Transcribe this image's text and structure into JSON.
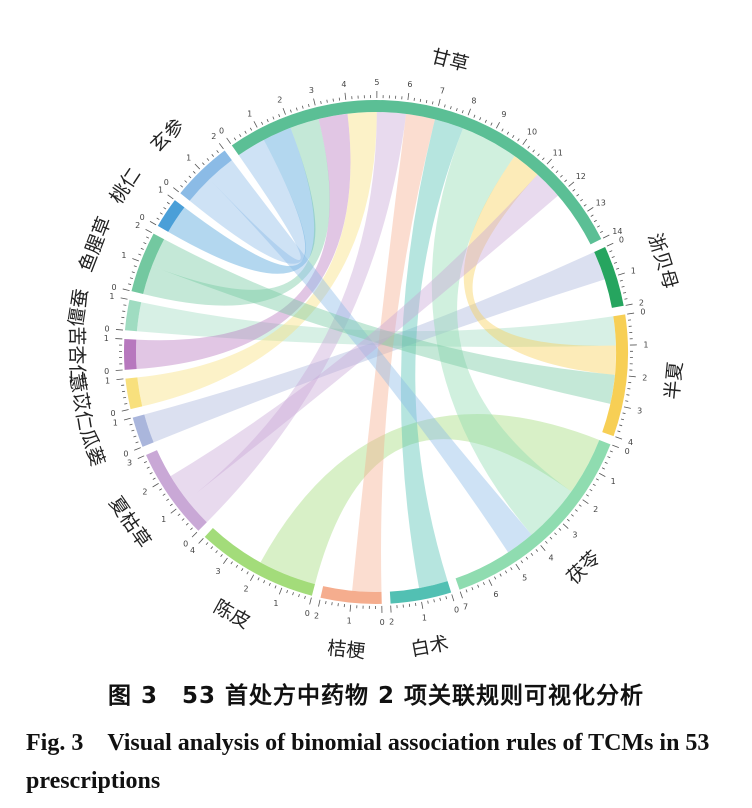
{
  "chart_data": {
    "type": "chord",
    "nodes": [
      {
        "name": "甘草",
        "color": "#5bbf95",
        "value": 14
      },
      {
        "name": "浙贝母",
        "color": "#26a55f",
        "value": 2
      },
      {
        "name": "半夏",
        "color": "#f7cf55",
        "value": 4
      },
      {
        "name": "茯苓",
        "color": "#8fdcb0",
        "value": 7
      },
      {
        "name": "白术",
        "color": "#52c0b3",
        "value": 2
      },
      {
        "name": "桔梗",
        "color": "#f5ad8e",
        "value": 2
      },
      {
        "name": "陈皮",
        "color": "#a3dc7a",
        "value": 4
      },
      {
        "name": "夏枯草",
        "color": "#c9a8d6",
        "value": 3
      },
      {
        "name": "瓜蒌",
        "color": "#aab6dc",
        "value": 1
      },
      {
        "name": "薏苡仁",
        "color": "#f8e07d",
        "value": 1
      },
      {
        "name": "苦杏仁",
        "color": "#b778be",
        "value": 1
      },
      {
        "name": "僵蚕",
        "color": "#9fdcc1",
        "value": 1
      },
      {
        "name": "鱼腥草",
        "color": "#73c8a0",
        "value": 2
      },
      {
        "name": "桃仁",
        "color": "#4a9fd8",
        "value": 1
      },
      {
        "name": "玄参",
        "color": "#8bbbe6",
        "value": 2
      }
    ],
    "links": [
      {
        "source": "玄参",
        "target": "甘草",
        "value": 1
      },
      {
        "source": "桃仁",
        "target": "甘草",
        "value": 1
      },
      {
        "source": "鱼腥草",
        "target": "甘草",
        "value": 1
      },
      {
        "source": "僵蚕",
        "target": "半夏",
        "value": 1
      },
      {
        "source": "苦杏仁",
        "target": "甘草",
        "value": 1
      },
      {
        "source": "薏苡仁",
        "target": "甘草",
        "value": 1
      },
      {
        "source": "瓜蒌",
        "target": "浙贝母",
        "value": 1
      },
      {
        "source": "夏枯草",
        "target": "甘草",
        "value": 1
      },
      {
        "source": "陈皮",
        "target": "茯苓",
        "value": 2
      },
      {
        "source": "桔梗",
        "target": "甘草",
        "value": 1
      },
      {
        "source": "白术",
        "target": "甘草",
        "value": 1
      },
      {
        "source": "茯苓",
        "target": "甘草",
        "value": 2
      },
      {
        "source": "半夏",
        "target": "甘草",
        "value": 1
      },
      {
        "source": "玄参",
        "target": "茯苓",
        "value": 1
      },
      {
        "source": "鱼腥草",
        "target": "半夏",
        "value": 1
      },
      {
        "source": "夏枯草",
        "target": "甘草",
        "value": 1
      }
    ]
  },
  "caption_cn": "图 3　53 首处方中药物 2 项关联规则可视化分析",
  "caption_en": "Fig. 3　Visual analysis of binomial association rules of TCMs in 53 prescriptions"
}
